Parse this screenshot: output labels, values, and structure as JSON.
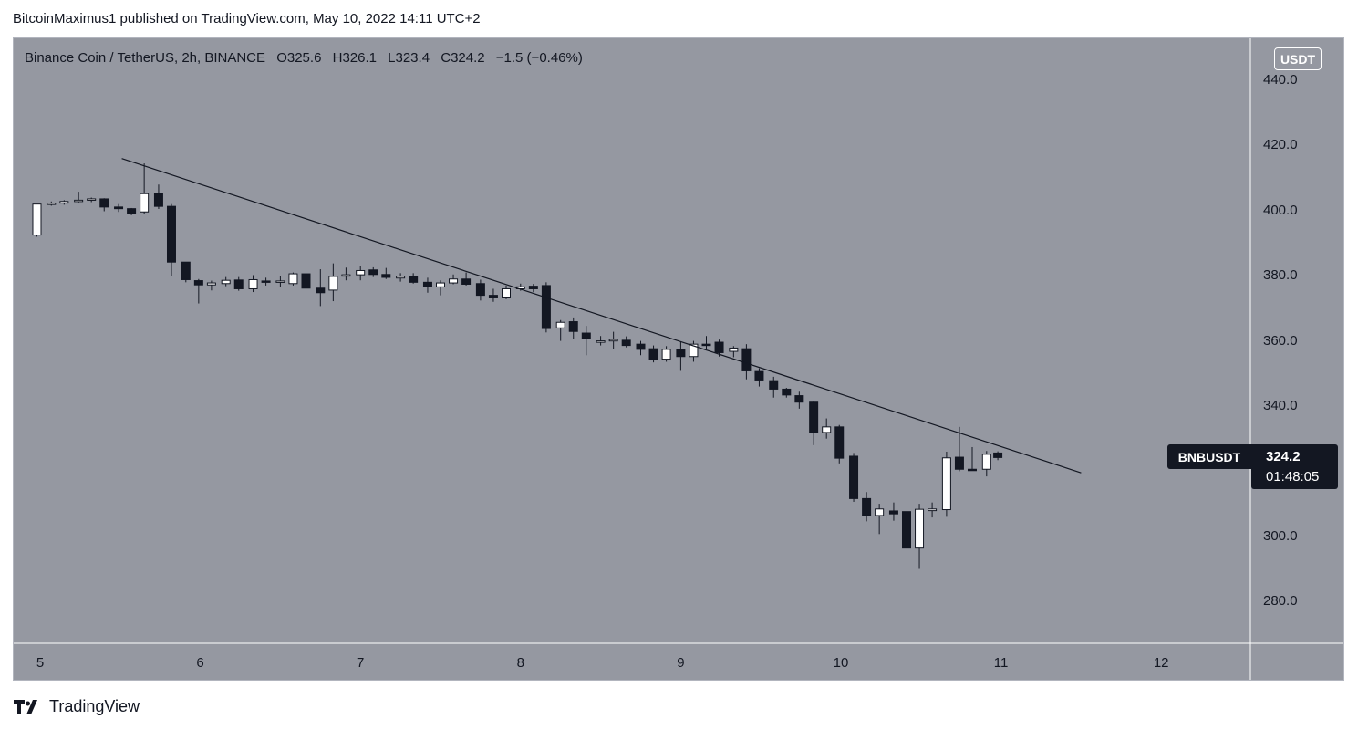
{
  "header": {
    "publisher_text": "BitcoinMaximus1 published on TradingView.com, May 10, 2022 14:11 UTC+2"
  },
  "legend": {
    "symbol_text": "Binance Coin / TetherUS, 2h, BINANCE",
    "open_label": "O",
    "open_value": "325.6",
    "high_label": "H",
    "high_value": "326.1",
    "low_label": "L",
    "low_value": "323.4",
    "close_label": "C",
    "close_value": "324.2",
    "change_text": "−1.5 (−0.46%)"
  },
  "price_axis": {
    "currency": "USDT"
  },
  "last_price": {
    "symbol": "BNBUSDT",
    "price": "324.2",
    "countdown": "01:48:05"
  },
  "footer": {
    "brand": "TradingView"
  },
  "colors": {
    "background": "#9598a1",
    "up_candle": "#ffffff",
    "down_candle": "#131722",
    "trendline": "#131722"
  },
  "chart_data": {
    "type": "candlestick",
    "y_ticks": [
      "440.0",
      "420.0",
      "400.0",
      "380.0",
      "360.0",
      "340.0",
      "300.0",
      "280.0"
    ],
    "y_tick_values": [
      440,
      420,
      400,
      380,
      360,
      340,
      300,
      280
    ],
    "x_ticks": [
      "5",
      "6",
      "7",
      "8",
      "9",
      "10",
      "11",
      "12"
    ],
    "x_tick_days": [
      5,
      6,
      7,
      8,
      9,
      10,
      11,
      12
    ],
    "ylim": [
      265,
      452
    ],
    "grid": false,
    "trendline": {
      "from": [
        5.51,
        416
      ],
      "to": [
        11.5,
        319.5
      ]
    },
    "candles": [
      [
        4.98,
        392.5,
        402,
        392,
        402
      ],
      [
        5.07,
        402,
        402.8,
        401.5,
        402.3
      ],
      [
        5.15,
        402.3,
        403.2,
        401.8,
        402.8
      ],
      [
        5.24,
        402.8,
        405.8,
        402.4,
        403.2
      ],
      [
        5.32,
        403.2,
        404,
        402.6,
        403.6
      ],
      [
        5.4,
        403.6,
        403.8,
        399.8,
        401.1
      ],
      [
        5.49,
        401.1,
        402,
        399.6,
        400.6
      ],
      [
        5.57,
        400.6,
        400.8,
        398.6,
        399.2
      ],
      [
        5.65,
        399.6,
        414.5,
        399,
        405.2
      ],
      [
        5.74,
        405.2,
        408,
        400.5,
        401.3
      ],
      [
        5.82,
        401.3,
        402,
        380,
        384.2
      ],
      [
        5.91,
        384.2,
        383.6,
        378,
        378.8
      ],
      [
        5.99,
        378.5,
        379,
        371.5,
        377.2
      ],
      [
        6.07,
        377.2,
        378.5,
        375.5,
        377.8
      ],
      [
        6.16,
        377.6,
        379.6,
        376.8,
        378.6
      ],
      [
        6.24,
        378.7,
        379.6,
        375.4,
        376
      ],
      [
        6.33,
        376,
        380.2,
        375,
        378.8
      ],
      [
        6.41,
        378.4,
        379.4,
        377,
        378.1
      ],
      [
        6.5,
        378.1,
        379.8,
        376.6,
        378.4
      ],
      [
        6.58,
        377.6,
        381,
        377,
        380.6
      ],
      [
        6.66,
        380.6,
        381.8,
        374,
        376.2
      ],
      [
        6.75,
        376.2,
        382,
        370.7,
        374.8
      ],
      [
        6.83,
        375.6,
        383.8,
        372.2,
        379.8
      ],
      [
        6.91,
        380.2,
        382.5,
        378.6,
        380.3
      ],
      [
        7,
        380.3,
        383,
        378.6,
        381.6
      ],
      [
        7.08,
        381.8,
        382.6,
        379.6,
        380.4
      ],
      [
        7.16,
        380.4,
        382.4,
        379,
        379.5
      ],
      [
        7.25,
        379.3,
        380.8,
        378.2,
        379.8
      ],
      [
        7.33,
        379.8,
        380.8,
        377.6,
        378
      ],
      [
        7.42,
        378,
        379.4,
        374.8,
        376.6
      ],
      [
        7.5,
        376.6,
        378.6,
        374,
        377.8
      ],
      [
        7.58,
        377.8,
        380.4,
        377.4,
        379
      ],
      [
        7.66,
        379,
        381,
        377,
        377.4
      ],
      [
        7.75,
        377.6,
        378.8,
        372.4,
        374
      ],
      [
        7.83,
        374,
        376,
        372,
        373.2
      ],
      [
        7.91,
        373.2,
        377,
        372.8,
        376
      ],
      [
        8,
        376,
        377.6,
        375.4,
        376.6
      ],
      [
        8.08,
        376.8,
        377.5,
        375,
        376
      ],
      [
        8.16,
        377,
        378,
        362.6,
        363.8
      ],
      [
        8.25,
        364,
        366.4,
        360,
        365.7
      ],
      [
        8.33,
        365.9,
        367.2,
        360.5,
        362.9
      ],
      [
        8.41,
        362.4,
        364.6,
        355.6,
        360.6
      ],
      [
        8.5,
        359.9,
        361.5,
        358.6,
        360
      ],
      [
        8.58,
        360,
        362.8,
        357.6,
        360.4
      ],
      [
        8.66,
        360.2,
        361.4,
        358,
        358.6
      ],
      [
        8.75,
        359,
        360,
        355.6,
        357.4
      ],
      [
        8.83,
        357.6,
        358.6,
        353.4,
        354.4
      ],
      [
        8.91,
        354.4,
        358.4,
        353.6,
        357.4
      ],
      [
        9,
        357.4,
        359.6,
        350.8,
        355.2
      ],
      [
        9.08,
        355.2,
        360,
        353.6,
        359
      ],
      [
        9.16,
        359,
        361.5,
        357.6,
        358.6
      ],
      [
        9.24,
        359.6,
        360.4,
        355.2,
        356.4
      ],
      [
        9.33,
        356.8,
        358.4,
        355,
        357.8
      ],
      [
        9.41,
        357.6,
        359,
        348.2,
        350.8
      ],
      [
        9.49,
        350.6,
        351.6,
        346,
        348
      ],
      [
        9.58,
        347.8,
        349,
        342.6,
        345.2
      ],
      [
        9.66,
        345.2,
        345.6,
        342.6,
        343.4
      ],
      [
        9.74,
        343.2,
        344.4,
        339.2,
        341.2
      ],
      [
        9.83,
        341.2,
        341.6,
        328,
        331.9
      ],
      [
        9.91,
        331.9,
        336.2,
        330,
        333.6
      ],
      [
        9.99,
        333.6,
        334.2,
        322.4,
        324
      ],
      [
        10.08,
        324.6,
        325.6,
        310.6,
        311.6
      ],
      [
        10.16,
        311.6,
        313.6,
        304.6,
        306.4
      ],
      [
        10.24,
        306.4,
        310,
        300.7,
        308.4
      ],
      [
        10.33,
        307.8,
        310.4,
        304.8,
        306.9
      ],
      [
        10.41,
        307.6,
        307.5,
        296.4,
        296.4
      ],
      [
        10.49,
        296.4,
        310,
        290,
        308.3
      ],
      [
        10.57,
        307.9,
        310.4,
        305.8,
        308.4
      ],
      [
        10.66,
        308.2,
        326,
        306,
        324.1
      ],
      [
        10.74,
        324.3,
        333.6,
        320,
        320.6
      ],
      [
        10.82,
        320.6,
        327.4,
        320.2,
        320.2
      ],
      [
        10.91,
        320.6,
        326.2,
        318.4,
        325.2
      ],
      [
        10.98,
        325.6,
        326.1,
        323.4,
        324.2
      ]
    ]
  }
}
